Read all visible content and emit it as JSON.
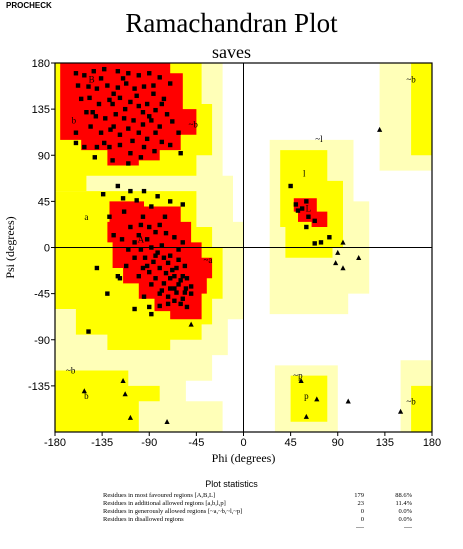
{
  "program": "PROCHECK",
  "title": "Ramachandran Plot",
  "subtitle": "saves",
  "chart_data": {
    "type": "scatter",
    "xlabel": "Phi (degrees)",
    "ylabel": "Psi (degrees)",
    "xlim": [
      -180,
      180
    ],
    "ylim": [
      -180,
      180
    ],
    "xticks": [
      -180,
      -135,
      -90,
      -45,
      0,
      45,
      90,
      135,
      180
    ],
    "yticks": [
      180,
      135,
      90,
      45,
      0,
      -45,
      -90,
      -135
    ],
    "region_labels": [
      {
        "text": "B",
        "phi": -145,
        "psi": 164
      },
      {
        "text": "b",
        "phi": -162,
        "psi": 124
      },
      {
        "text": "~b",
        "phi": -48,
        "psi": 120
      },
      {
        "text": "a",
        "phi": -150,
        "psi": 30
      },
      {
        "text": "A",
        "phi": -98,
        "psi": 8
      },
      {
        "text": "~a",
        "phi": -34,
        "psi": -12
      },
      {
        "text": "~l",
        "phi": 72,
        "psi": 106
      },
      {
        "text": "l",
        "phi": 58,
        "psi": 72
      },
      {
        "text": "L",
        "phi": 62,
        "psi": 38
      },
      {
        "text": "~b",
        "phi": -165,
        "psi": -120
      },
      {
        "text": "b",
        "phi": -150,
        "psi": -145
      },
      {
        "text": "~p",
        "phi": 52,
        "psi": -125
      },
      {
        "text": "p",
        "phi": 60,
        "psi": -145
      },
      {
        "text": "~b",
        "phi": 160,
        "psi": 164
      },
      {
        "text": "~b",
        "phi": 160,
        "psi": -150
      }
    ],
    "colors": {
      "most_favoured": "#ff0000",
      "additional_allowed": "#ffff00",
      "generously_allowed": "#ffffb8",
      "disallowed": "#ffffff"
    },
    "squares": [
      [
        -160,
        170
      ],
      [
        -152,
        168
      ],
      [
        -143,
        172
      ],
      [
        -133,
        174
      ],
      [
        -120,
        172
      ],
      [
        -110,
        170
      ],
      [
        -100,
        168
      ],
      [
        -90,
        170
      ],
      [
        -80,
        166
      ],
      [
        -70,
        160
      ],
      [
        -158,
        158
      ],
      [
        -148,
        157
      ],
      [
        -140,
        155
      ],
      [
        -130,
        158
      ],
      [
        -120,
        156
      ],
      [
        -112,
        160
      ],
      [
        -104,
        155
      ],
      [
        -95,
        157
      ],
      [
        -86,
        150
      ],
      [
        -76,
        145
      ],
      [
        -155,
        145
      ],
      [
        -147,
        146
      ],
      [
        -138,
        140
      ],
      [
        -128,
        144
      ],
      [
        -118,
        146
      ],
      [
        -108,
        142
      ],
      [
        -100,
        138
      ],
      [
        -92,
        140
      ],
      [
        -84,
        134
      ],
      [
        -73,
        130
      ],
      [
        -150,
        132
      ],
      [
        -141,
        128
      ],
      [
        -132,
        126
      ],
      [
        -122,
        130
      ],
      [
        -114,
        126
      ],
      [
        -105,
        124
      ],
      [
        -96,
        120
      ],
      [
        -88,
        124
      ],
      [
        -80,
        118
      ],
      [
        -68,
        123
      ],
      [
        -146,
        118
      ],
      [
        -136,
        112
      ],
      [
        -127,
        115
      ],
      [
        -118,
        110
      ],
      [
        -110,
        116
      ],
      [
        -100,
        112
      ],
      [
        -92,
        106
      ],
      [
        -84,
        112
      ],
      [
        -78,
        103
      ],
      [
        -128,
        98
      ],
      [
        -118,
        100
      ],
      [
        -95,
        98
      ],
      [
        -108,
        92
      ],
      [
        -85,
        94
      ],
      [
        -70,
        100
      ],
      [
        -124,
        150
      ],
      [
        -136,
        165
      ],
      [
        -115,
        165
      ],
      [
        -102,
        148
      ],
      [
        -160,
        112
      ],
      [
        -160,
        102
      ],
      [
        -125,
        140
      ],
      [
        -113,
        135
      ],
      [
        -96,
        132
      ],
      [
        -86,
        158
      ],
      [
        -78,
        140
      ],
      [
        -140,
        98
      ],
      [
        -152,
        98
      ],
      [
        -142,
        88
      ],
      [
        -125,
        85
      ],
      [
        -110,
        82
      ],
      [
        -98,
        88
      ],
      [
        -62,
        112
      ],
      [
        -60,
        92
      ],
      [
        -144,
        132
      ],
      [
        -124,
        118
      ],
      [
        -106,
        104
      ],
      [
        -90,
        128
      ],
      [
        -133,
        102
      ],
      [
        -120,
        60
      ],
      [
        -108,
        55
      ],
      [
        -95,
        55
      ],
      [
        -82,
        50
      ],
      [
        -70,
        45
      ],
      [
        -58,
        42
      ],
      [
        -102,
        46
      ],
      [
        -88,
        40
      ],
      [
        -114,
        35
      ],
      [
        -75,
        30
      ],
      [
        -108,
        20
      ],
      [
        -98,
        22
      ],
      [
        -90,
        20
      ],
      [
        -84,
        15
      ],
      [
        -80,
        22
      ],
      [
        -74,
        14
      ],
      [
        -66,
        10
      ],
      [
        -58,
        5
      ],
      [
        -100,
        12
      ],
      [
        -92,
        8
      ],
      [
        -88,
        0
      ],
      [
        -82,
        -5
      ],
      [
        -78,
        2
      ],
      [
        -70,
        -8
      ],
      [
        -62,
        -12
      ],
      [
        -56,
        -18
      ],
      [
        -98,
        -2
      ],
      [
        -104,
        5
      ],
      [
        -94,
        -10
      ],
      [
        -86,
        -14
      ],
      [
        -80,
        -20
      ],
      [
        -74,
        -25
      ],
      [
        -66,
        -28
      ],
      [
        -60,
        -32
      ],
      [
        -55,
        -40
      ],
      [
        -50,
        -45
      ],
      [
        -90,
        -24
      ],
      [
        -84,
        -30
      ],
      [
        -76,
        -35
      ],
      [
        -70,
        -40
      ],
      [
        -64,
        -44
      ],
      [
        -58,
        -50
      ],
      [
        -72,
        -48
      ],
      [
        -78,
        -42
      ],
      [
        -66,
        -52
      ],
      [
        -60,
        -55
      ],
      [
        -68,
        -22
      ],
      [
        -72,
        -15
      ],
      [
        -64,
        -20
      ],
      [
        -58,
        -28
      ],
      [
        -62,
        -36
      ],
      [
        -54,
        -30
      ],
      [
        -50,
        -38
      ],
      [
        -70,
        -30
      ],
      [
        -76,
        -10
      ],
      [
        -84,
        -8
      ],
      [
        -92,
        -18
      ],
      [
        -62,
        -2
      ],
      [
        -66,
        -40
      ],
      [
        -56,
        -44
      ],
      [
        -124,
        12
      ],
      [
        -116,
        8
      ],
      [
        -110,
        -2
      ],
      [
        -104,
        -10
      ],
      [
        -96,
        -20
      ],
      [
        -88,
        -36
      ],
      [
        -80,
        -45
      ],
      [
        -72,
        -55
      ],
      [
        -112,
        -18
      ],
      [
        -100,
        -28
      ],
      [
        -128,
        30
      ],
      [
        -134,
        52
      ],
      [
        -140,
        -20
      ],
      [
        -118,
        -30
      ],
      [
        -95,
        -48
      ],
      [
        -104,
        -60
      ],
      [
        -90,
        -58
      ],
      [
        -115,
        48
      ],
      [
        -96,
        30
      ],
      [
        -54,
        -58
      ],
      [
        -148,
        -82
      ],
      [
        -88,
        -65
      ],
      [
        -120,
        -28
      ],
      [
        -130,
        -45
      ],
      [
        -80,
        -57
      ],
      [
        45,
        60
      ],
      [
        50,
        42
      ],
      [
        56,
        38
      ],
      [
        62,
        30
      ],
      [
        68,
        26
      ],
      [
        60,
        45
      ],
      [
        52,
        36
      ],
      [
        68,
        4
      ],
      [
        74,
        5
      ],
      [
        82,
        10
      ],
      [
        60,
        20
      ]
    ],
    "triangles": [
      [
        -115,
        -130
      ],
      [
        -152,
        -140
      ],
      [
        -113,
        -143
      ],
      [
        -108,
        -166
      ],
      [
        -73,
        -170
      ],
      [
        -50,
        -75
      ],
      [
        95,
        5
      ],
      [
        90,
        -5
      ],
      [
        88,
        -15
      ],
      [
        110,
        -10
      ],
      [
        95,
        -20
      ],
      [
        55,
        -130
      ],
      [
        70,
        -148
      ],
      [
        100,
        -150
      ],
      [
        60,
        -165
      ],
      [
        130,
        115
      ],
      [
        150,
        -160
      ]
    ],
    "statistics": {
      "heading": "Plot statistics",
      "rows": [
        {
          "label": "Residues in most favoured regions   [A,B,L]",
          "count": "179",
          "percent": "88.6%"
        },
        {
          "label": "Residues in additional allowed regions   [a,b,l,p]",
          "count": "23",
          "percent": "11.4%"
        },
        {
          "label": "Residues in generously allowed regions   [~a,~b,~l,~p]",
          "count": "0",
          "percent": "0.0%"
        },
        {
          "label": "Residues in disallowed regions",
          "count": "0",
          "percent": "0.0%"
        }
      ],
      "rule": "----"
    }
  }
}
